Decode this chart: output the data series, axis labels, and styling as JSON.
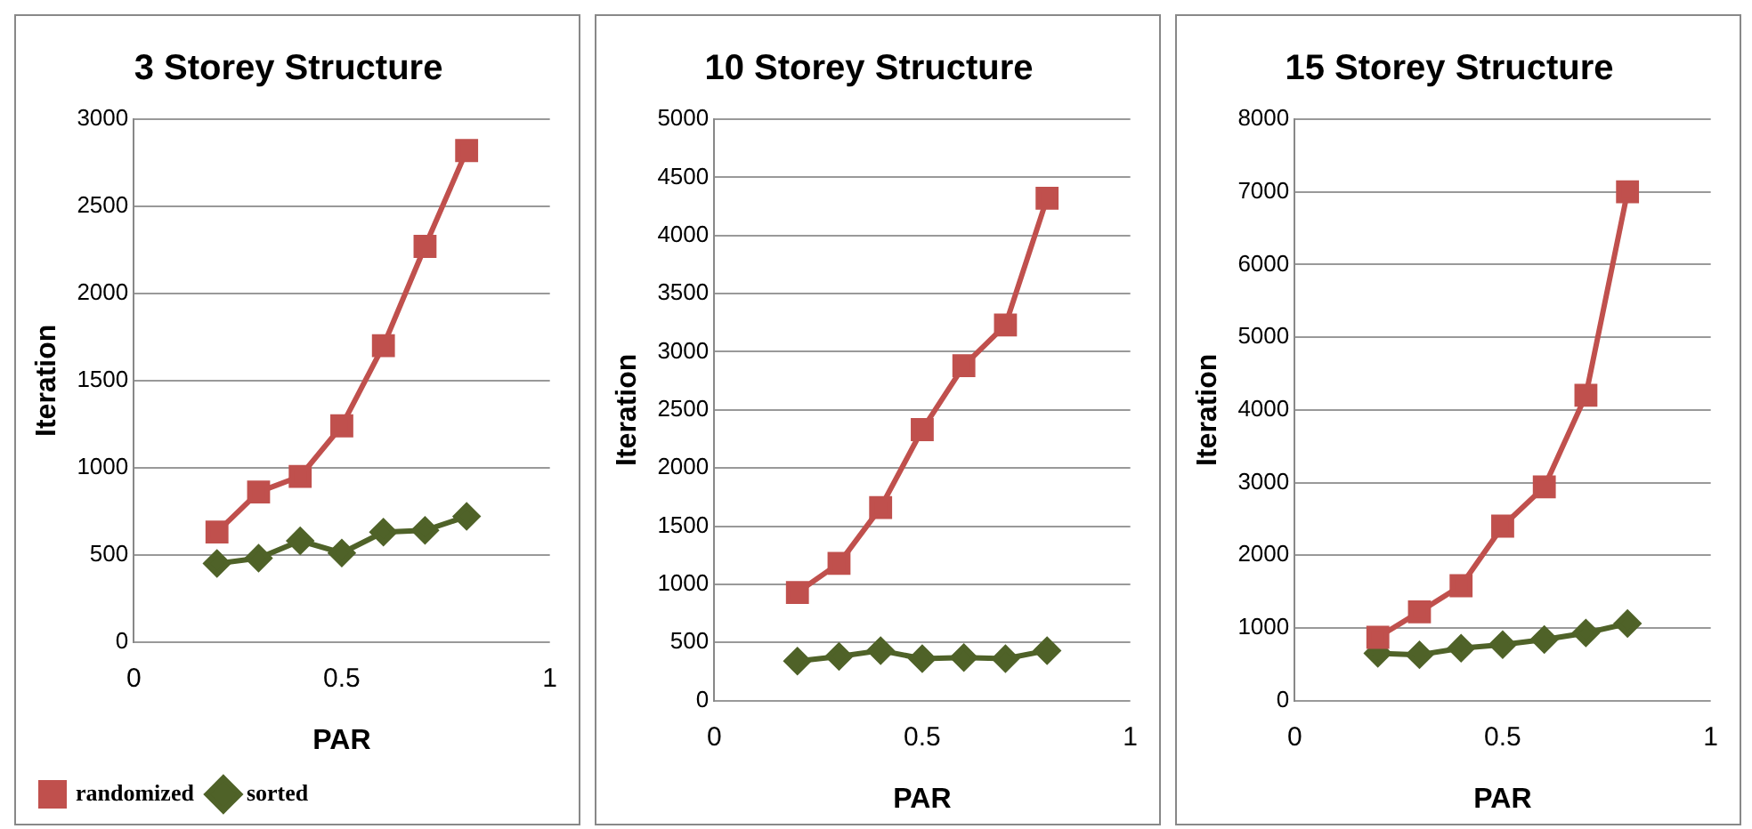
{
  "chart_data": [
    {
      "type": "line",
      "title": "3 Storey Structure",
      "xlabel": "PAR",
      "ylabel": "Iteration",
      "x": [
        0.2,
        0.3,
        0.4,
        0.5,
        0.6,
        0.7,
        0.8
      ],
      "xlim": [
        0,
        1
      ],
      "xticks": [
        0,
        0.5,
        1
      ],
      "ylim": [
        0,
        3000
      ],
      "yticks": [
        0,
        500,
        1000,
        1500,
        2000,
        2500,
        3000
      ],
      "grid": "y",
      "legend": "bottom left",
      "series": [
        {
          "name": "randomized",
          "color": "#c0504d",
          "marker": "square",
          "values": [
            630,
            860,
            950,
            1240,
            1700,
            2270,
            2820
          ]
        },
        {
          "name": "sorted",
          "color": "#4f6228",
          "marker": "diamond",
          "values": [
            450,
            480,
            580,
            510,
            630,
            640,
            720
          ]
        }
      ]
    },
    {
      "type": "line",
      "title": "10 Storey Structure",
      "xlabel": "PAR",
      "ylabel": "Iteration",
      "x": [
        0.2,
        0.3,
        0.4,
        0.5,
        0.6,
        0.7,
        0.8
      ],
      "xlim": [
        0,
        1
      ],
      "xticks": [
        0,
        0.5,
        1
      ],
      "ylim": [
        0,
        5000
      ],
      "yticks": [
        0,
        500,
        1000,
        1500,
        2000,
        2500,
        3000,
        3500,
        4000,
        4500,
        5000
      ],
      "grid": "y",
      "legend": false,
      "series": [
        {
          "color": "#c0504d",
          "marker": "square",
          "values": [
            930,
            1180,
            1660,
            2330,
            2880,
            3230,
            4320
          ]
        },
        {
          "color": "#4f6228",
          "marker": "diamond",
          "values": [
            340,
            380,
            430,
            360,
            370,
            360,
            430
          ]
        }
      ]
    },
    {
      "type": "line",
      "title": "15 Storey Structure",
      "xlabel": "PAR",
      "ylabel": "Iteration",
      "x": [
        0.2,
        0.3,
        0.4,
        0.5,
        0.6,
        0.7,
        0.8
      ],
      "xlim": [
        0,
        1
      ],
      "xticks": [
        0,
        0.5,
        1
      ],
      "ylim": [
        0,
        8000
      ],
      "yticks": [
        0,
        1000,
        2000,
        3000,
        4000,
        5000,
        6000,
        7000,
        8000
      ],
      "grid": "y",
      "legend": false,
      "series": [
        {
          "color": "#c0504d",
          "marker": "square",
          "values": [
            870,
            1220,
            1580,
            2400,
            2940,
            4200,
            7000
          ]
        },
        {
          "color": "#4f6228",
          "marker": "diamond",
          "values": [
            650,
            630,
            720,
            770,
            840,
            930,
            1060
          ]
        }
      ]
    }
  ]
}
